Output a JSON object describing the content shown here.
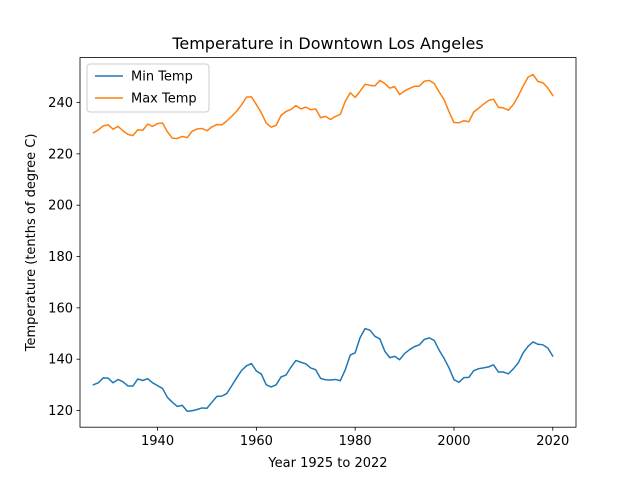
{
  "chart_data": {
    "type": "line",
    "title": "Temperature in Downtown Los Angeles",
    "xlabel": "Year 1925 to 2022",
    "ylabel": "Temperature (tenths of degree C)",
    "xlim": [
      1924.3,
      2024.7
    ],
    "ylim": [
      113.5,
      257.5
    ],
    "xticks": [
      1940,
      1960,
      1980,
      2000,
      2020
    ],
    "yticks": [
      120,
      140,
      160,
      180,
      200,
      220,
      240
    ],
    "grid": false,
    "legend_position": "upper-left",
    "x": [
      1927,
      1928,
      1929,
      1930,
      1931,
      1932,
      1933,
      1934,
      1935,
      1936,
      1937,
      1938,
      1939,
      1940,
      1941,
      1942,
      1943,
      1944,
      1945,
      1946,
      1947,
      1948,
      1949,
      1950,
      1951,
      1952,
      1953,
      1954,
      1955,
      1956,
      1957,
      1958,
      1959,
      1960,
      1961,
      1962,
      1963,
      1964,
      1965,
      1966,
      1967,
      1968,
      1969,
      1970,
      1971,
      1972,
      1973,
      1974,
      1975,
      1976,
      1977,
      1978,
      1979,
      1980,
      1981,
      1982,
      1983,
      1984,
      1985,
      1986,
      1987,
      1988,
      1989,
      1990,
      1991,
      1992,
      1993,
      1994,
      1995,
      1996,
      1997,
      1998,
      1999,
      2000,
      2001,
      2002,
      2003,
      2004,
      2005,
      2006,
      2007,
      2008,
      2009,
      2010,
      2011,
      2012,
      2013,
      2014,
      2015,
      2016,
      2017,
      2018,
      2019,
      2020
    ],
    "series": [
      {
        "name": "Min Temp",
        "color": "#1f77b4",
        "values": [
          130.0,
          130.8,
          132.7,
          132.6,
          130.8,
          132.1,
          131.2,
          129.6,
          129.5,
          132.3,
          131.7,
          132.4,
          130.8,
          129.7,
          128.6,
          125.1,
          123.2,
          121.6,
          122.0,
          119.7,
          119.9,
          120.4,
          121.0,
          120.9,
          123.2,
          125.5,
          125.6,
          126.6,
          129.6,
          132.7,
          135.6,
          137.4,
          138.3,
          135.4,
          134.2,
          130.0,
          129.2,
          130.0,
          133.1,
          133.8,
          136.9,
          139.5,
          138.8,
          138.2,
          136.6,
          135.9,
          132.5,
          132.0,
          131.9,
          132.1,
          131.6,
          135.9,
          141.6,
          142.5,
          148.4,
          151.9,
          151.3,
          148.9,
          147.9,
          143.1,
          140.6,
          141.1,
          139.8,
          142.2,
          143.7,
          144.9,
          145.6,
          147.7,
          148.3,
          147.3,
          143.5,
          140.3,
          136.6,
          132.0,
          131.0,
          132.8,
          132.9,
          135.5,
          136.3,
          136.6,
          137.0,
          137.8,
          135.0,
          135.0,
          134.3,
          136.2,
          138.5,
          142.5,
          145.0,
          146.7,
          145.8,
          145.6,
          144.3,
          141.2
        ]
      },
      {
        "name": "Max Temp",
        "color": "#ff7f0e",
        "values": [
          228.2,
          229.3,
          230.9,
          231.3,
          229.6,
          230.7,
          229.0,
          227.6,
          227.1,
          229.4,
          229.2,
          231.6,
          230.7,
          231.8,
          232.0,
          228.6,
          226.1,
          226.0,
          226.8,
          226.3,
          228.8,
          229.7,
          229.9,
          229.0,
          230.5,
          231.4,
          231.3,
          232.8,
          234.6,
          236.6,
          239.1,
          242.1,
          242.2,
          239.2,
          236.0,
          232.0,
          230.4,
          231.1,
          235.0,
          236.5,
          237.3,
          238.8,
          237.5,
          238.2,
          237.2,
          237.5,
          234.1,
          234.6,
          233.4,
          234.6,
          235.4,
          240.5,
          243.8,
          242.0,
          244.4,
          247.1,
          246.7,
          246.5,
          248.6,
          247.4,
          245.6,
          246.2,
          243.1,
          244.5,
          245.5,
          246.3,
          246.4,
          248.3,
          248.6,
          247.4,
          244.1,
          241.1,
          236.4,
          232.2,
          232.1,
          232.9,
          232.5,
          236.3,
          237.8,
          239.4,
          240.8,
          241.3,
          238.1,
          237.9,
          237.0,
          239.2,
          242.5,
          246.4,
          249.9,
          250.9,
          248.2,
          247.7,
          245.7,
          242.7
        ]
      }
    ]
  }
}
